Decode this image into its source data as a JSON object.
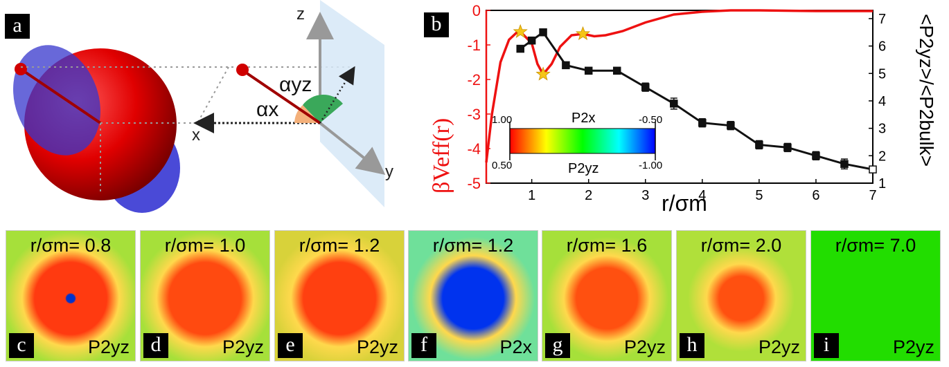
{
  "panel_labels": {
    "a": "a",
    "b": "b",
    "c": "c",
    "d": "d",
    "e": "e",
    "f": "f",
    "g": "g",
    "h": "h",
    "i": "i"
  },
  "diagram": {
    "axis_z": "z",
    "axis_x": "x",
    "axis_y": "y",
    "angle_yz": "αyz",
    "angle_x": "αx"
  },
  "chart_data": {
    "type": "line",
    "xlabel": "r/σm",
    "ylabel_left": "βVeff(r)",
    "ylabel_right": "<P2yz>/<P2bulk>",
    "xlim": [
      0.2,
      7
    ],
    "ylim_left": [
      -5,
      0
    ],
    "ylim_right": [
      1,
      7.3
    ],
    "x_ticks": [
      "1",
      "2",
      "3",
      "4",
      "5",
      "6",
      "7"
    ],
    "y_left_ticks": [
      "0",
      "-1",
      "-2",
      "-3",
      "-4",
      "-5"
    ],
    "y_right_ticks": [
      "7",
      "6",
      "5",
      "4",
      "3",
      "2",
      "1"
    ],
    "series": [
      {
        "name": "βVeff(r)",
        "axis": "left",
        "color": "#ee1111",
        "x": [
          0.2,
          0.3,
          0.45,
          0.6,
          0.75,
          0.85,
          1.0,
          1.1,
          1.2,
          1.35,
          1.5,
          1.7,
          1.9,
          2.1,
          2.3,
          2.6,
          3.0,
          3.5,
          4.0,
          4.5,
          5.0,
          6.0,
          7.0
        ],
        "y": [
          -4.4,
          -3.0,
          -1.5,
          -0.85,
          -0.62,
          -0.7,
          -0.95,
          -1.55,
          -1.85,
          -1.55,
          -1.05,
          -0.72,
          -0.68,
          -0.75,
          -0.72,
          -0.6,
          -0.35,
          -0.12,
          -0.04,
          0.0,
          0.0,
          -0.02,
          -0.02
        ]
      },
      {
        "name": "<P2yz>/<P2bulk>",
        "axis": "right",
        "color": "#111111",
        "x": [
          0.8,
          1.0,
          1.2,
          1.6,
          2.0,
          2.5,
          3.0,
          3.5,
          4.0,
          4.5,
          5.0,
          5.5,
          6.0,
          6.5,
          7.0
        ],
        "y": [
          5.9,
          6.2,
          6.5,
          5.3,
          5.1,
          5.1,
          4.5,
          3.9,
          3.2,
          3.1,
          2.4,
          2.3,
          2.0,
          1.7,
          1.5
        ],
        "err": [
          0.1,
          0.12,
          0.12,
          0.1,
          0.12,
          0.12,
          0.15,
          0.2,
          0.15,
          0.15,
          0.15,
          0.15,
          0.15,
          0.18,
          0.05
        ]
      }
    ],
    "stars": {
      "x": [
        0.8,
        1.2,
        1.9
      ],
      "y": [
        -0.62,
        -1.85,
        -0.68
      ],
      "color": "#f5c518"
    },
    "colorbar": {
      "label_top": "P2x",
      "label_bottom": "P2yz",
      "top_left": "1.00",
      "top_right": "-0.50",
      "bottom_left": "0.50",
      "bottom_right": "-1.00",
      "colors": [
        "#ff0000",
        "#ff8000",
        "#ffff00",
        "#80ff00",
        "#00ff00",
        "#00ff80",
        "#00ffff",
        "#0080ff",
        "#0000ff"
      ]
    }
  },
  "maps": [
    {
      "label": "c",
      "title": "r/σm= 0.8",
      "symbol": "P2yz",
      "bg": "#a6e03a",
      "blob": "#ff3a10",
      "blob_size": "large",
      "center": "#0033cc"
    },
    {
      "label": "d",
      "title": "r/σm= 1.0",
      "symbol": "P2yz",
      "bg": "#a6e03a",
      "blob": "#ff4a10",
      "blob_size": "large",
      "center": ""
    },
    {
      "label": "e",
      "title": "r/σm= 1.2",
      "symbol": "P2yz",
      "bg": "#d8d23a",
      "blob": "#ff4010",
      "blob_size": "large",
      "center": ""
    },
    {
      "label": "f",
      "title": "r/σm= 1.2",
      "symbol": "P2x",
      "bg": "#6fe09a",
      "blob": "#0033ee",
      "blob_size": "medium",
      "center": ""
    },
    {
      "label": "g",
      "title": "r/σm= 1.6",
      "symbol": "P2yz",
      "bg": "#a6e03a",
      "blob": "#ff5010",
      "blob_size": "medium",
      "center": ""
    },
    {
      "label": "h",
      "title": "r/σm= 2.0",
      "symbol": "P2yz",
      "bg": "#b0e03a",
      "blob": "#ff5010",
      "blob_size": "small",
      "center": ""
    },
    {
      "label": "i",
      "title": "r/σm= 7.0",
      "symbol": "P2yz",
      "bg": "#22dd00",
      "blob": "",
      "blob_size": "none",
      "center": ""
    }
  ]
}
